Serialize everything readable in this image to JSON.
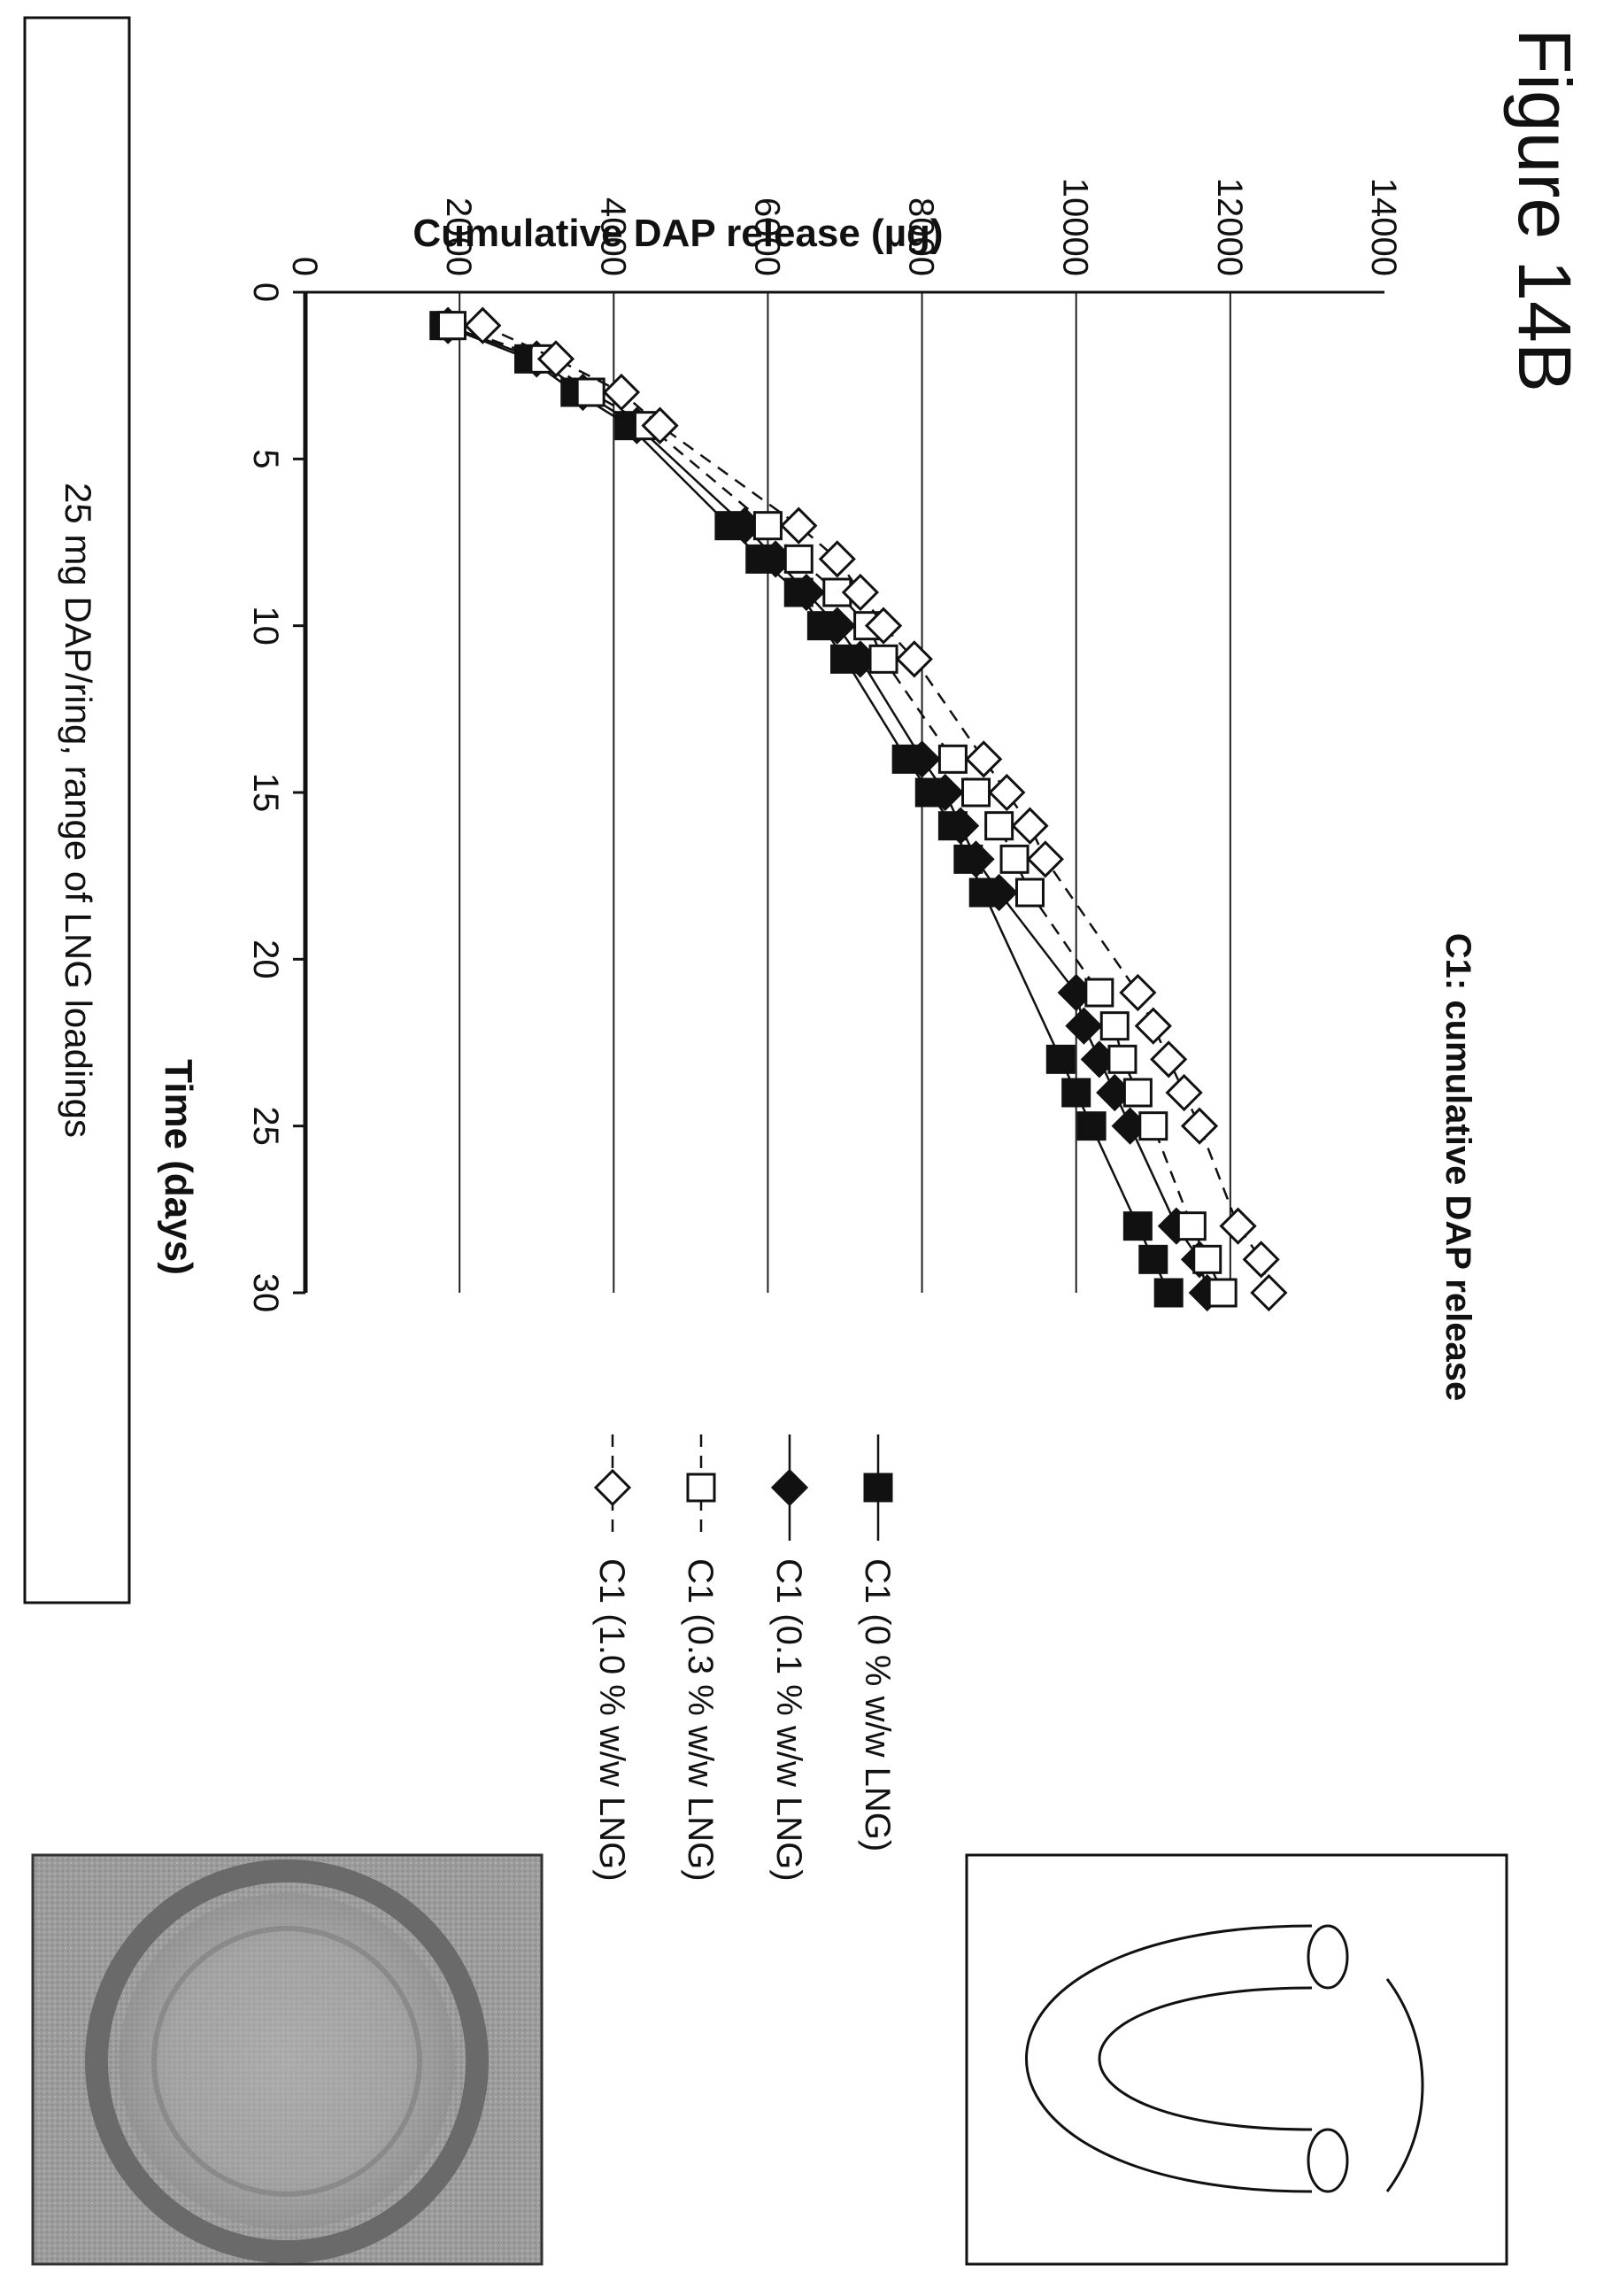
{
  "figure_label": "Figure 14B",
  "caption": "25 mg DAP/ring, range of LNG loadings",
  "chart_data": {
    "type": "line",
    "title": "C1: cumulative DAP release",
    "xlabel": "Time (days)",
    "ylabel": "Cumulative DAP release (µg)",
    "xlim": [
      0,
      30
    ],
    "ylim": [
      0,
      14000
    ],
    "x_ticks": [
      "0",
      "5",
      "10",
      "15",
      "20",
      "25",
      "30"
    ],
    "y_ticks": [
      "0",
      "2000",
      "4000",
      "6000",
      "8000",
      "10000",
      "12000",
      "14000"
    ],
    "grid": "horizontal",
    "legend_position": "right",
    "series": [
      {
        "name": "C1 (0 % w/w LNG)",
        "marker": "filled-square",
        "line": "solid",
        "x": [
          1,
          2,
          3,
          4,
          7,
          8,
          9,
          10,
          11,
          14,
          15,
          16,
          17,
          18,
          23,
          24,
          25,
          28,
          29,
          30
        ],
        "y": [
          1800,
          2900,
          3500,
          4200,
          5500,
          5900,
          6400,
          6700,
          7000,
          7800,
          8100,
          8400,
          8600,
          8800,
          9800,
          10000,
          10200,
          10800,
          11000,
          11200
        ]
      },
      {
        "name": "C1 (0.1 % w/w LNG)",
        "marker": "filled-diamond",
        "line": "solid",
        "x": [
          1,
          2,
          3,
          4,
          7,
          8,
          9,
          10,
          11,
          14,
          15,
          16,
          17,
          18,
          21,
          22,
          23,
          24,
          25,
          28,
          29,
          30
        ],
        "y": [
          1850,
          3000,
          3600,
          4300,
          5700,
          6100,
          6500,
          6900,
          7200,
          8000,
          8300,
          8500,
          8700,
          9000,
          10000,
          10100,
          10300,
          10500,
          10700,
          11300,
          11600,
          11700
        ]
      },
      {
        "name": "C1 (0.3 % w/w LNG)",
        "marker": "open-square",
        "line": "dashed",
        "x": [
          1,
          2,
          3,
          4,
          7,
          8,
          9,
          10,
          11,
          14,
          15,
          16,
          17,
          18,
          21,
          22,
          23,
          24,
          25,
          28,
          29,
          30
        ],
        "y": [
          1900,
          3100,
          3700,
          4450,
          6000,
          6400,
          6900,
          7300,
          7500,
          8400,
          8700,
          9000,
          9200,
          9400,
          10300,
          10500,
          10600,
          10800,
          11000,
          11500,
          11700,
          11900
        ]
      },
      {
        "name": "C1 (1.0 % w/w LNG)",
        "marker": "open-diamond",
        "line": "dashed",
        "x": [
          1,
          2,
          3,
          4,
          7,
          8,
          9,
          10,
          11,
          14,
          15,
          16,
          17,
          21,
          22,
          23,
          24,
          25,
          28,
          29,
          30
        ],
        "y": [
          2300,
          3250,
          4100,
          4600,
          6400,
          6900,
          7200,
          7500,
          7900,
          8800,
          9100,
          9400,
          9600,
          10800,
          11000,
          11200,
          11400,
          11600,
          12100,
          12400,
          12500
        ]
      }
    ]
  }
}
